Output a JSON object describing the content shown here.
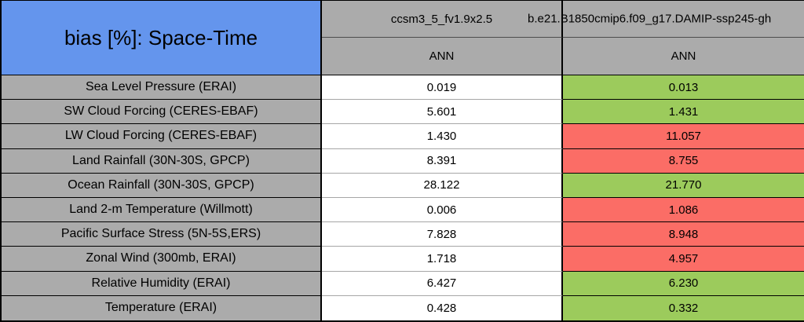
{
  "colors": {
    "title_bg": "#6495ED",
    "header_bg": "#ABABAB",
    "label_bg": "#ABABAB",
    "good_green": "#9CCB5C",
    "bad_red": "#FB6D66",
    "neutral_white": "#FFFFFF"
  },
  "chart_data": {
    "type": "table",
    "title": "bias [%]: Space-Time",
    "columns": [
      {
        "model": "ccsm3_5_fv1.9x2.5",
        "season": "ANN"
      },
      {
        "model": "b.e21.B1850cmip6.f09_g17.DAMIP-ssp245-gh",
        "season": "ANN"
      }
    ],
    "rows": [
      {
        "label": "Sea Level Pressure (ERAI)",
        "values": [
          "0.019",
          "0.013"
        ],
        "status": "green"
      },
      {
        "label": "SW Cloud Forcing (CERES-EBAF)",
        "values": [
          "5.601",
          "1.431"
        ],
        "status": "green"
      },
      {
        "label": "LW Cloud Forcing (CERES-EBAF)",
        "values": [
          "1.430",
          "11.057"
        ],
        "status": "red"
      },
      {
        "label": "Land Rainfall (30N-30S, GPCP)",
        "values": [
          "8.391",
          "8.755"
        ],
        "status": "red"
      },
      {
        "label": "Ocean Rainfall (30N-30S, GPCP)",
        "values": [
          "28.122",
          "21.770"
        ],
        "status": "green"
      },
      {
        "label": "Land 2-m Temperature (Willmott)",
        "values": [
          "0.006",
          "1.086"
        ],
        "status": "red"
      },
      {
        "label": "Pacific Surface Stress (5N-5S,ERS)",
        "values": [
          "7.828",
          "8.948"
        ],
        "status": "red"
      },
      {
        "label": "Zonal Wind (300mb, ERAI)",
        "values": [
          "1.718",
          "4.957"
        ],
        "status": "red"
      },
      {
        "label": "Relative Humidity (ERAI)",
        "values": [
          "6.427",
          "6.230"
        ],
        "status": "green"
      },
      {
        "label": "Temperature (ERAI)",
        "values": [
          "0.428",
          "0.332"
        ],
        "status": "green"
      }
    ]
  }
}
